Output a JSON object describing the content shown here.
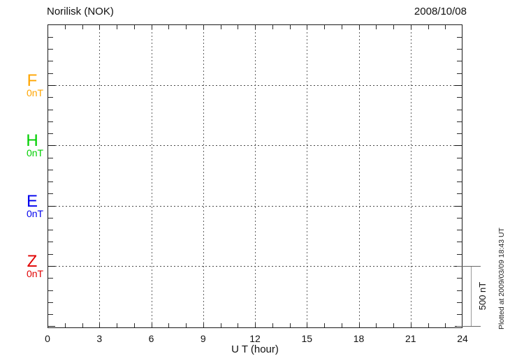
{
  "header": {
    "title": "Norilisk (NOK)",
    "date": "2008/10/08"
  },
  "chart_data": {
    "type": "line",
    "title": "Norilisk (NOK)",
    "date_label": "2008/10/08",
    "xlabel": "U T (hour)",
    "xlim": [
      0,
      24
    ],
    "x_ticks": [
      0,
      3,
      6,
      9,
      12,
      15,
      18,
      21,
      24
    ],
    "x_minor_tick_step_hours": 1,
    "grid": {
      "style": "dotted",
      "vertical_lines_every_hours": 3,
      "horizontal_lines": "one dotted baseline (0nT) per component"
    },
    "y_axis": {
      "minor_tick_step_nT": 100,
      "baseline_separation_nT": 500
    },
    "series": [
      {
        "name": "F",
        "baseline_label": "0nT",
        "color": "#FFA500",
        "values": [],
        "note": "no trace plotted"
      },
      {
        "name": "H",
        "baseline_label": "0nT",
        "color": "#00CF00",
        "values": [],
        "note": "no trace plotted"
      },
      {
        "name": "E",
        "baseline_label": "0nT",
        "color": "#0000EE",
        "values": [],
        "note": "no trace plotted"
      },
      {
        "name": "Z",
        "baseline_label": "0nT",
        "color": "#E00000",
        "values": [],
        "note": "no trace plotted"
      }
    ],
    "no_data_plotted": true,
    "scale_bar": {
      "label": "500 nT",
      "value_nT": 500
    },
    "legend_position": "left margin (component letters with 0nT baselines)"
  },
  "footer": {
    "plotted_at": "Plotted at 2009/03/09 18:43 UT"
  }
}
